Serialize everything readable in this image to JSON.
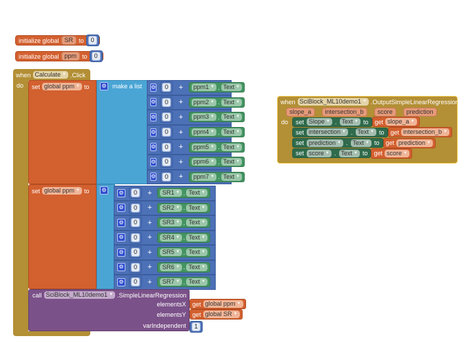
{
  "globals": [
    {
      "label": "initialize global",
      "name": "SR",
      "to": "to",
      "value": "0"
    },
    {
      "label": "initialize global",
      "name": "ppm",
      "to": "to",
      "value": "0"
    }
  ],
  "event1": {
    "when": "when",
    "component": "Calculate",
    "event": ".Click",
    "do": "do",
    "set1": {
      "set": "set",
      "var": "global ppm",
      "to": "to",
      "list_label": "make a list",
      "items": [
        {
          "num": "0",
          "op": "+",
          "component": "ppm1",
          "dot": ".",
          "prop": "Text"
        },
        {
          "num": "0",
          "op": "+",
          "component": "ppm2",
          "dot": ".",
          "prop": "Text"
        },
        {
          "num": "0",
          "op": "+",
          "component": "ppm3",
          "dot": ".",
          "prop": "Text"
        },
        {
          "num": "0",
          "op": "+",
          "component": "ppm4",
          "dot": ".",
          "prop": "Text"
        },
        {
          "num": "0",
          "op": "+",
          "component": "ppm5",
          "dot": ".",
          "prop": "Text"
        },
        {
          "num": "0",
          "op": "+",
          "component": "ppm6",
          "dot": ".",
          "prop": "Text"
        },
        {
          "num": "0",
          "op": "+",
          "component": "ppm7",
          "dot": ".",
          "prop": "Text"
        }
      ]
    },
    "set2": {
      "set": "set",
      "var": "global ppm",
      "to": "to",
      "items": [
        {
          "num": "0",
          "op": "+",
          "component": "SR1",
          "dot": ".",
          "prop": "Text"
        },
        {
          "num": "0",
          "op": "+",
          "component": "SR2",
          "dot": ".",
          "prop": "Text"
        },
        {
          "num": "0",
          "op": "+",
          "component": "SR3",
          "dot": ".",
          "prop": "Text"
        },
        {
          "num": "0",
          "op": "+",
          "component": "SR4",
          "dot": ".",
          "prop": "Text"
        },
        {
          "num": "0",
          "op": "+",
          "component": "SR5",
          "dot": ".",
          "prop": "Text"
        },
        {
          "num": "0",
          "op": "+",
          "component": "SR6",
          "dot": ".",
          "prop": "Text"
        },
        {
          "num": "0",
          "op": "+",
          "component": "SR7",
          "dot": ".",
          "prop": "Text"
        }
      ]
    },
    "call": {
      "call": "call",
      "component": "SciBlock_ML10demo1",
      "method": ".SimpleLinearRegression",
      "args": [
        {
          "label": "elementsX",
          "get": "get",
          "var": "global ppm"
        },
        {
          "label": "elementsY",
          "get": "get",
          "var": "global SR"
        },
        {
          "label": "varIndependent",
          "value": "1"
        }
      ]
    }
  },
  "event2": {
    "when": "when",
    "component": "SciBlock_ML10demo1",
    "event": ".OutputSimpleLinearRegression",
    "params": [
      "slope_a",
      "intersection_b",
      "score",
      "prediction"
    ],
    "do": "do",
    "sets": [
      {
        "set": "set",
        "component": "Slope",
        "dot": ".",
        "prop": "Text",
        "to": "to",
        "get": "get",
        "var": "slope_a"
      },
      {
        "set": "set",
        "component": "intersection",
        "dot": ".",
        "prop": "Text",
        "to": "to",
        "get": "get",
        "var": "intersection_b"
      },
      {
        "set": "set",
        "component": "prediction",
        "dot": ".",
        "prop": "Text",
        "to": "to",
        "get": "get",
        "var": "prediction"
      },
      {
        "set": "set",
        "component": "score",
        "dot": ".",
        "prop": "Text",
        "to": "to",
        "get": "get",
        "var": "score"
      }
    ]
  },
  "colors": {
    "variables": "#d3602f",
    "control": "#b38f35",
    "lists": "#4aa5d5",
    "math": "#4d71b7",
    "components": "#449462",
    "setters": "#2f6b4c",
    "procedures": "#7b5189"
  }
}
